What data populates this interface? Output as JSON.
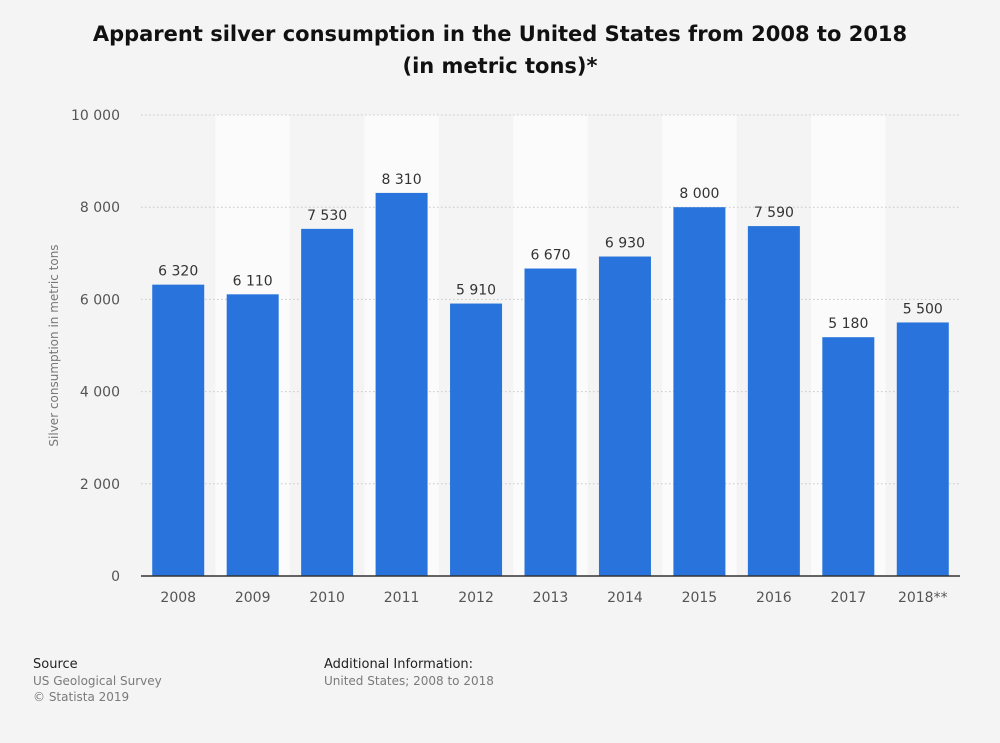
{
  "chart_data": {
    "type": "bar",
    "title_line1": "Apparent silver consumption in the United States from 2008 to 2018",
    "title_line2": "(in metric tons)*",
    "ylabel": "Silver consumption in metric tons",
    "xlabel": "",
    "categories": [
      "2008",
      "2009",
      "2010",
      "2011",
      "2012",
      "2013",
      "2014",
      "2015",
      "2016",
      "2017",
      "2018**"
    ],
    "values": [
      6320,
      6110,
      7530,
      8310,
      5910,
      6670,
      6930,
      8000,
      7590,
      5180,
      5500
    ],
    "value_labels": [
      "6 320",
      "6 110",
      "7 530",
      "8 310",
      "5 910",
      "6 670",
      "6 930",
      "8 000",
      "7 590",
      "5 180",
      "5 500"
    ],
    "ylim": [
      0,
      10000
    ],
    "yticks": [
      0,
      2000,
      4000,
      6000,
      8000,
      10000
    ],
    "ytick_labels": [
      "0",
      "2 000",
      "4 000",
      "6 000",
      "8 000",
      "10 000"
    ],
    "grid": true,
    "bar_color": "#2874dc"
  },
  "footer": {
    "source_heading": "Source",
    "source_line1": "US Geological Survey",
    "source_line2": "© Statista 2019",
    "additional_heading": "Additional Information:",
    "additional_line1": "United States; 2008 to 2018"
  }
}
